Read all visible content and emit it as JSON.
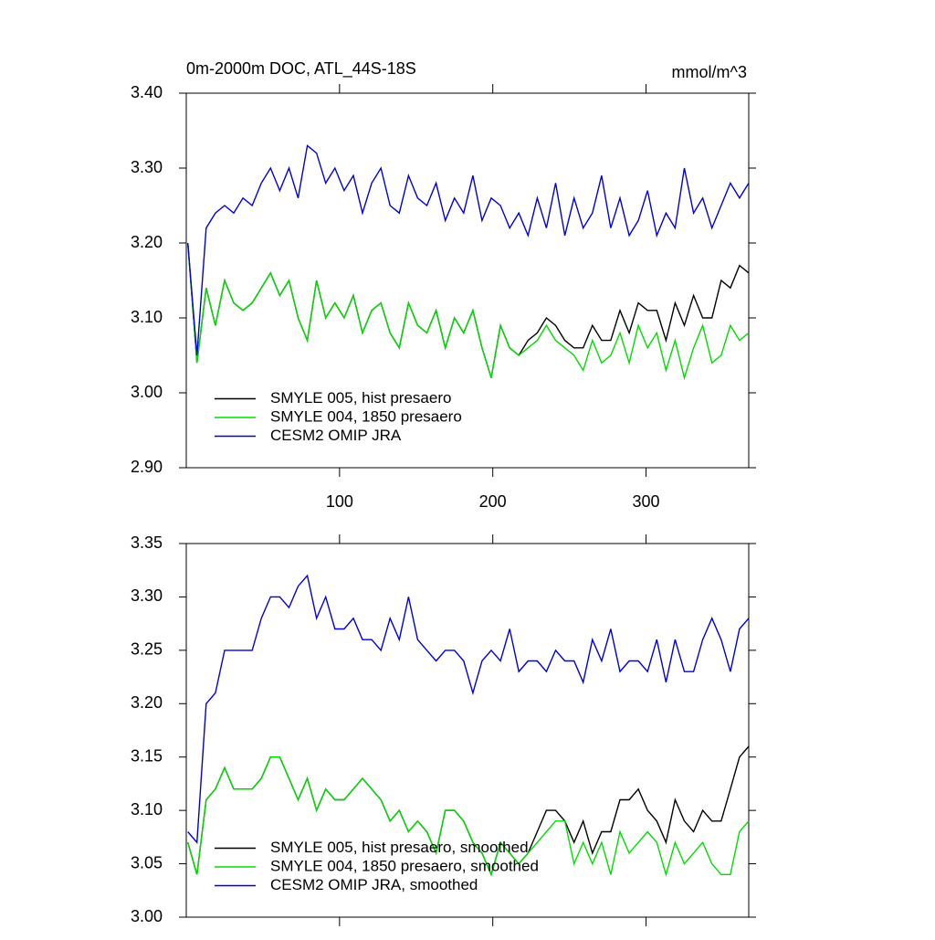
{
  "chart_data": [
    {
      "type": "line",
      "title": "0m-2000m DOC, ATL_44S-18S",
      "units": "mmol/m^3",
      "legend": "lower left",
      "x": [
        1,
        7,
        13,
        19,
        25,
        31,
        37,
        43,
        49,
        55,
        61,
        67,
        73,
        79,
        85,
        91,
        97,
        103,
        109,
        115,
        121,
        127,
        133,
        139,
        145,
        151,
        157,
        163,
        169,
        175,
        181,
        187,
        193,
        199,
        205,
        211,
        217,
        223,
        229,
        235,
        241,
        247,
        253,
        259,
        265,
        271,
        277,
        283,
        289,
        295,
        301,
        307,
        313,
        319,
        325,
        331,
        337,
        343,
        349,
        355,
        361,
        367
      ],
      "xlim": [
        0,
        367
      ],
      "xticks": [
        100,
        200,
        300
      ],
      "ylim": [
        2.9,
        3.4
      ],
      "yticks": [
        {
          "value": 2.9,
          "label": "2.90"
        },
        {
          "value": 3.0,
          "label": "3.00"
        },
        {
          "value": 3.1,
          "label": "3.10"
        },
        {
          "value": 3.2,
          "label": "3.20"
        },
        {
          "value": 3.3,
          "label": "3.30"
        },
        {
          "value": 3.4,
          "label": "3.40"
        }
      ],
      "series": [
        {
          "name": "SMYLE 005, hist presaero",
          "color": "#000000",
          "values": [
            3.2,
            3.04,
            3.14,
            3.09,
            3.15,
            3.12,
            3.11,
            3.12,
            3.14,
            3.16,
            3.13,
            3.15,
            3.1,
            3.07,
            3.15,
            3.1,
            3.12,
            3.1,
            3.13,
            3.08,
            3.11,
            3.12,
            3.08,
            3.06,
            3.12,
            3.09,
            3.08,
            3.11,
            3.06,
            3.1,
            3.08,
            3.11,
            3.06,
            3.02,
            3.09,
            3.06,
            3.05,
            3.07,
            3.08,
            3.1,
            3.09,
            3.07,
            3.06,
            3.06,
            3.09,
            3.07,
            3.07,
            3.11,
            3.08,
            3.12,
            3.11,
            3.11,
            3.07,
            3.12,
            3.09,
            3.13,
            3.1,
            3.1,
            3.15,
            3.14,
            3.17,
            3.16
          ]
        },
        {
          "name": "SMYLE 004, 1850 presaero",
          "color": "#00dd00",
          "values": [
            3.2,
            3.04,
            3.14,
            3.09,
            3.15,
            3.12,
            3.11,
            3.12,
            3.14,
            3.16,
            3.13,
            3.15,
            3.1,
            3.07,
            3.15,
            3.1,
            3.12,
            3.1,
            3.13,
            3.08,
            3.11,
            3.12,
            3.08,
            3.06,
            3.12,
            3.09,
            3.08,
            3.11,
            3.06,
            3.1,
            3.08,
            3.11,
            3.06,
            3.02,
            3.09,
            3.06,
            3.05,
            3.06,
            3.07,
            3.09,
            3.07,
            3.06,
            3.05,
            3.03,
            3.07,
            3.04,
            3.05,
            3.08,
            3.04,
            3.09,
            3.06,
            3.08,
            3.03,
            3.07,
            3.02,
            3.06,
            3.09,
            3.04,
            3.05,
            3.09,
            3.07,
            3.08
          ]
        },
        {
          "name": "CESM2 OMIP JRA",
          "color": "#0000dd",
          "values": [
            3.2,
            3.05,
            3.22,
            3.24,
            3.25,
            3.24,
            3.26,
            3.25,
            3.28,
            3.3,
            3.27,
            3.3,
            3.26,
            3.33,
            3.32,
            3.28,
            3.3,
            3.27,
            3.29,
            3.24,
            3.28,
            3.3,
            3.25,
            3.24,
            3.29,
            3.26,
            3.25,
            3.28,
            3.23,
            3.26,
            3.24,
            3.29,
            3.23,
            3.26,
            3.25,
            3.22,
            3.24,
            3.21,
            3.26,
            3.22,
            3.28,
            3.21,
            3.26,
            3.22,
            3.24,
            3.29,
            3.22,
            3.26,
            3.21,
            3.23,
            3.27,
            3.21,
            3.24,
            3.22,
            3.3,
            3.24,
            3.26,
            3.22,
            3.25,
            3.28,
            3.26,
            3.28
          ]
        }
      ]
    },
    {
      "type": "line",
      "legend": "lower left",
      "x": [
        1,
        7,
        13,
        19,
        25,
        31,
        37,
        43,
        49,
        55,
        61,
        67,
        73,
        79,
        85,
        91,
        97,
        103,
        109,
        115,
        121,
        127,
        133,
        139,
        145,
        151,
        157,
        163,
        169,
        175,
        181,
        187,
        193,
        199,
        205,
        211,
        217,
        223,
        229,
        235,
        241,
        247,
        253,
        259,
        265,
        271,
        277,
        283,
        289,
        295,
        301,
        307,
        313,
        319,
        325,
        331,
        337,
        343,
        349,
        355,
        361,
        367
      ],
      "xlim": [
        0,
        367
      ],
      "ylim": [
        3.0,
        3.35
      ],
      "yticks": [
        {
          "value": 3.0,
          "label": "3.00"
        },
        3.05,
        {
          "value": 3.1,
          "label": "3.10"
        },
        3.15,
        {
          "value": 3.2,
          "label": "3.20"
        },
        3.25,
        {
          "value": 3.3,
          "label": "3.30"
        },
        3.35
      ],
      "series": [
        {
          "name": "SMYLE 005, hist presaero, smoothed",
          "color": "#000000",
          "values": [
            3.07,
            3.04,
            3.11,
            3.12,
            3.14,
            3.12,
            3.12,
            3.12,
            3.13,
            3.15,
            3.15,
            3.13,
            3.11,
            3.13,
            3.1,
            3.12,
            3.11,
            3.11,
            3.12,
            3.13,
            3.12,
            3.11,
            3.09,
            3.1,
            3.08,
            3.09,
            3.08,
            3.06,
            3.1,
            3.1,
            3.09,
            3.07,
            3.06,
            3.04,
            3.07,
            3.06,
            3.05,
            3.06,
            3.08,
            3.1,
            3.1,
            3.09,
            3.07,
            3.09,
            3.06,
            3.08,
            3.08,
            3.11,
            3.11,
            3.12,
            3.1,
            3.09,
            3.07,
            3.11,
            3.09,
            3.08,
            3.1,
            3.09,
            3.09,
            3.12,
            3.15,
            3.16
          ]
        },
        {
          "name": "SMYLE 004, 1850 presaero, smoothed",
          "color": "#00dd00",
          "values": [
            3.07,
            3.04,
            3.11,
            3.12,
            3.14,
            3.12,
            3.12,
            3.12,
            3.13,
            3.15,
            3.15,
            3.13,
            3.11,
            3.13,
            3.1,
            3.12,
            3.11,
            3.11,
            3.12,
            3.13,
            3.12,
            3.11,
            3.09,
            3.1,
            3.08,
            3.09,
            3.08,
            3.06,
            3.1,
            3.1,
            3.09,
            3.07,
            3.06,
            3.04,
            3.07,
            3.06,
            3.05,
            3.06,
            3.07,
            3.08,
            3.09,
            3.09,
            3.05,
            3.07,
            3.05,
            3.07,
            3.04,
            3.08,
            3.06,
            3.07,
            3.08,
            3.07,
            3.04,
            3.07,
            3.05,
            3.06,
            3.07,
            3.05,
            3.04,
            3.04,
            3.08,
            3.09
          ]
        },
        {
          "name": "CESM2 OMIP JRA, smoothed",
          "color": "#0000dd",
          "values": [
            3.08,
            3.07,
            3.2,
            3.21,
            3.25,
            3.25,
            3.25,
            3.25,
            3.28,
            3.3,
            3.3,
            3.29,
            3.31,
            3.32,
            3.28,
            3.3,
            3.27,
            3.27,
            3.28,
            3.26,
            3.26,
            3.25,
            3.28,
            3.26,
            3.3,
            3.26,
            3.25,
            3.24,
            3.25,
            3.25,
            3.24,
            3.21,
            3.24,
            3.25,
            3.24,
            3.27,
            3.23,
            3.24,
            3.24,
            3.23,
            3.25,
            3.24,
            3.24,
            3.22,
            3.26,
            3.24,
            3.27,
            3.23,
            3.24,
            3.24,
            3.23,
            3.26,
            3.22,
            3.26,
            3.23,
            3.23,
            3.26,
            3.28,
            3.26,
            3.23,
            3.27,
            3.28
          ]
        }
      ]
    }
  ]
}
